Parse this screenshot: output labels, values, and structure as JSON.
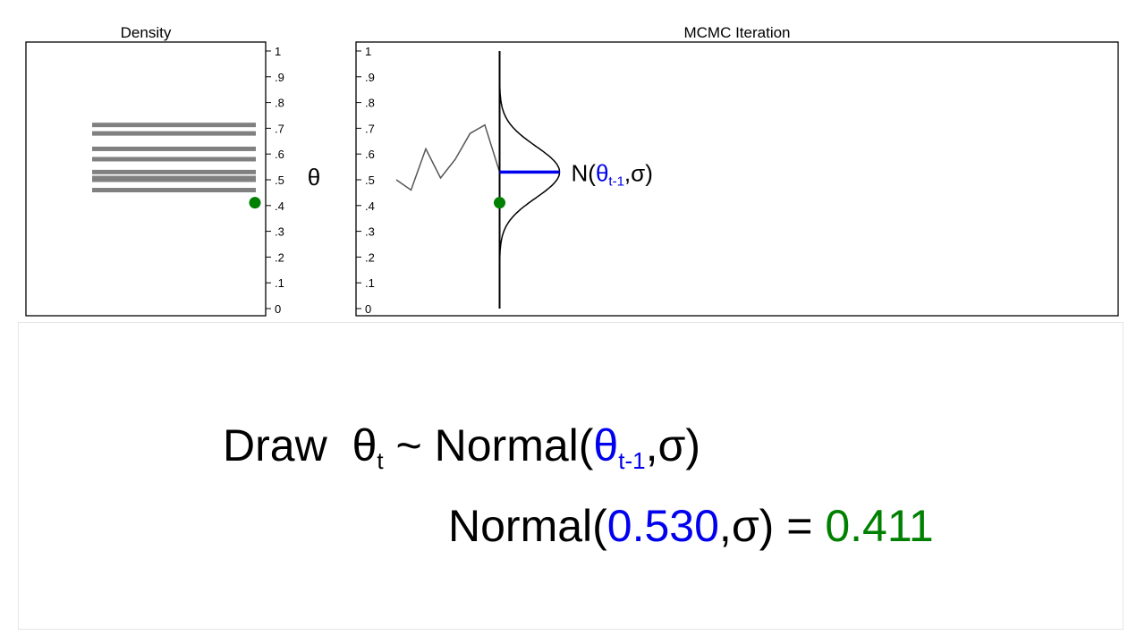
{
  "chart_data": [
    {
      "type": "bar",
      "title": "Density",
      "orientation": "horizontal",
      "ylim": [
        0,
        1
      ],
      "yticks": [
        "0",
        ".1",
        ".2",
        ".3",
        ".4",
        ".5",
        ".6",
        ".7",
        ".8",
        ".9",
        "1"
      ],
      "bar_color": "#808080",
      "draw_values": [
        0.5,
        0.46,
        0.62,
        0.507,
        0.58,
        0.68,
        0.713,
        0.53
      ],
      "current_draw": 0.411,
      "current_draw_color": "#008000"
    },
    {
      "type": "line",
      "title": "MCMC Iteration",
      "ylim": [
        0,
        1
      ],
      "yticks": [
        "0",
        ".1",
        ".2",
        ".3",
        ".4",
        ".5",
        ".6",
        ".7",
        ".8",
        ".9",
        "1"
      ],
      "y_axis_symbol": "θ",
      "trace": [
        0.5,
        0.46,
        0.62,
        0.507,
        0.58,
        0.68,
        0.713,
        0.53
      ],
      "line_color": "#555555",
      "proposal": {
        "mean": 0.53,
        "sd": 0.1,
        "label_prefix": "N(",
        "label_theta": "θ",
        "label_sub": "t-1",
        "label_suffix": ",σ)",
        "mean_line_color": "#0000ee"
      },
      "current_draw": 0.411,
      "current_draw_color": "#008000"
    }
  ],
  "formula": {
    "draw_word": "Draw",
    "theta": "θ",
    "sub_t": "t",
    "tilde_normal": " ~ Normal(",
    "theta_prev": "θ",
    "sub_prev": "t-1",
    "sigma_close": ",σ)",
    "normal_open": "Normal(",
    "prev_value": "0.530",
    "sigma_equals": ",σ) = ",
    "new_value": "0.411"
  },
  "colors": {
    "blue": "#0000ee",
    "green": "#008000",
    "grey": "#808080"
  }
}
